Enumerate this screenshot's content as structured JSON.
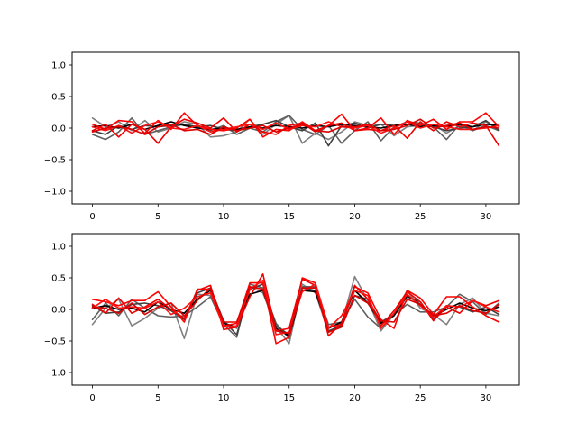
{
  "chart_data": [
    {
      "type": "line",
      "xlim": [
        -1.55,
        32.55
      ],
      "ylim": [
        -1.2,
        1.2
      ],
      "xticks": [
        0,
        5,
        10,
        15,
        20,
        25,
        30
      ],
      "yticks": [
        1.0,
        0.5,
        0.0,
        -0.5,
        -1.0
      ],
      "xtick_labels": [
        "0",
        "5",
        "10",
        "15",
        "20",
        "25",
        "30"
      ],
      "ytick_labels": [
        "1.0",
        "0.5",
        "0.0",
        "−0.5",
        "−1.0"
      ],
      "grid": false,
      "series": [
        {
          "color": "#808080",
          "values": [
            0.16,
            0.02,
            0.1,
            -0.04,
            0.12,
            -0.06,
            0.0,
            0.1,
            0.06,
            -0.14,
            -0.12,
            -0.06,
            0.14,
            -0.1,
            0.06,
            0.2,
            -0.24,
            -0.08,
            -0.18,
            -0.06,
            0.1,
            0.04,
            0.06,
            -0.12,
            0.02,
            0.04,
            0.06,
            -0.08,
            0.04,
            -0.04,
            0.1,
            -0.02
          ]
        },
        {
          "color": "#606060",
          "values": [
            -0.1,
            -0.18,
            -0.06,
            0.16,
            -0.1,
            -0.04,
            0.02,
            0.06,
            0.02,
            -0.04,
            0.04,
            -0.1,
            0.0,
            -0.06,
            0.1,
            0.2,
            -0.02,
            -0.1,
            0.04,
            -0.24,
            -0.04,
            0.1,
            -0.2,
            0.02,
            0.1,
            0.08,
            0.02,
            -0.18,
            0.06,
            -0.04,
            0.04,
            -0.04
          ]
        },
        {
          "color": "#404040",
          "values": [
            -0.04,
            -0.1,
            0.04,
            -0.02,
            0.04,
            0.02,
            0.04,
            0.06,
            0.02,
            0.04,
            -0.02,
            -0.04,
            0.02,
            0.06,
            0.12,
            0.02,
            -0.04,
            0.08,
            -0.28,
            0.04,
            0.08,
            0.0,
            0.06,
            0.04,
            0.06,
            0.04,
            0.02,
            -0.04,
            0.0,
            0.02,
            0.12,
            -0.04
          ]
        },
        {
          "color": "#000000",
          "values": [
            0.02,
            0.04,
            0.0,
            0.06,
            -0.02,
            0.04,
            0.1,
            0.04,
            0.0,
            -0.02,
            0.0,
            -0.02,
            0.02,
            0.0,
            0.04,
            0.02,
            0.0,
            0.04,
            0.02,
            0.06,
            0.04,
            0.02,
            0.0,
            0.04,
            0.06,
            0.02,
            0.04,
            0.02,
            0.06,
            0.02,
            0.06,
            0.04
          ]
        },
        {
          "color": "#ff0000",
          "values": [
            0.06,
            -0.02,
            0.12,
            0.1,
            -0.08,
            0.12,
            -0.02,
            0.24,
            0.04,
            -0.02,
            -0.04,
            0.0,
            0.14,
            -0.14,
            -0.02,
            -0.04,
            0.1,
            -0.04,
            0.04,
            0.22,
            -0.04,
            0.0,
            0.16,
            -0.1,
            0.12,
            0.04,
            0.14,
            -0.02,
            0.1,
            0.1,
            0.24,
            0.02
          ]
        },
        {
          "color": "#ee0000",
          "values": [
            -0.04,
            0.06,
            -0.14,
            0.06,
            -0.02,
            -0.24,
            0.02,
            0.14,
            0.08,
            0.0,
            0.16,
            -0.06,
            0.06,
            -0.06,
            -0.1,
            0.04,
            0.08,
            -0.06,
            0.04,
            0.08,
            -0.04,
            -0.02,
            -0.04,
            0.04,
            -0.16,
            0.1,
            -0.04,
            0.1,
            0.02,
            0.08,
            0.04,
            -0.28
          ]
        },
        {
          "color": "#ff1010",
          "values": [
            0.02,
            -0.04,
            0.04,
            -0.08,
            0.04,
            0.1,
            0.0,
            -0.02,
            0.04,
            -0.06,
            -0.02,
            0.02,
            0.06,
            -0.02,
            0.08,
            -0.02,
            0.04,
            0.02,
            0.1,
            0.02,
            0.0,
            0.04,
            -0.08,
            0.0,
            0.1,
            0.0,
            0.06,
            0.02,
            -0.02,
            -0.02,
            0.0,
            0.04
          ]
        },
        {
          "color": "#dd0000",
          "values": [
            -0.06,
            0.0,
            0.02,
            -0.02,
            -0.1,
            0.02,
            0.06,
            -0.04,
            -0.02,
            -0.1,
            0.02,
            -0.04,
            0.0,
            0.04,
            -0.06,
            0.0,
            0.06,
            -0.04,
            -0.06,
            0.02,
            0.02,
            0.06,
            -0.04,
            -0.02,
            0.04,
            0.14,
            0.0,
            0.04,
            0.08,
            -0.02,
            0.02,
            0.0
          ]
        }
      ]
    },
    {
      "type": "line",
      "xlim": [
        -1.55,
        32.55
      ],
      "ylim": [
        -1.2,
        1.2
      ],
      "xticks": [
        0,
        5,
        10,
        15,
        20,
        25,
        30
      ],
      "yticks": [
        1.0,
        0.5,
        0.0,
        -0.5,
        -1.0
      ],
      "xtick_labels": [
        "0",
        "5",
        "10",
        "15",
        "20",
        "25",
        "30"
      ],
      "ytick_labels": [
        "1.0",
        "0.5",
        "0.0",
        "−0.5",
        "−1.0"
      ],
      "grid": false,
      "series": [
        {
          "color": "#808080",
          "values": [
            -0.24,
            0.02,
            0.16,
            -0.26,
            -0.14,
            0.02,
            0.1,
            -0.46,
            0.24,
            0.22,
            -0.2,
            -0.3,
            0.36,
            0.26,
            -0.28,
            -0.54,
            0.4,
            0.26,
            -0.36,
            -0.22,
            0.52,
            0.14,
            -0.34,
            -0.08,
            0.3,
            0.02,
            -0.08,
            -0.24,
            0.08,
            0.18,
            -0.06,
            -0.1
          ]
        },
        {
          "color": "#606060",
          "values": [
            -0.16,
            0.1,
            -0.1,
            0.16,
            0.02,
            -0.1,
            -0.12,
            -0.1,
            0.04,
            0.2,
            -0.24,
            -0.44,
            0.4,
            0.34,
            -0.22,
            -0.46,
            0.36,
            0.36,
            -0.24,
            -0.2,
            0.16,
            -0.12,
            -0.3,
            -0.08,
            0.08,
            -0.04,
            -0.04,
            0.04,
            0.24,
            0.12,
            -0.08,
            0.1
          ]
        },
        {
          "color": "#404040",
          "values": [
            0.06,
            -0.06,
            -0.04,
            0.08,
            0.1,
            0.06,
            -0.02,
            -0.16,
            0.26,
            0.34,
            -0.18,
            -0.4,
            0.32,
            0.4,
            -0.26,
            -0.4,
            0.34,
            0.3,
            -0.34,
            -0.26,
            0.22,
            0.16,
            -0.2,
            -0.08,
            0.2,
            0.12,
            -0.16,
            0.06,
            0.04,
            -0.04,
            0.04,
            -0.08
          ]
        },
        {
          "color": "#000000",
          "values": [
            0.02,
            0.06,
            0.0,
            0.02,
            -0.04,
            0.12,
            0.0,
            -0.06,
            0.16,
            0.3,
            -0.22,
            -0.28,
            0.24,
            0.3,
            -0.3,
            -0.42,
            0.3,
            0.28,
            -0.3,
            -0.2,
            0.3,
            0.1,
            -0.22,
            -0.1,
            0.22,
            0.08,
            -0.1,
            0.0,
            0.1,
            0.02,
            -0.02,
            0.04
          ]
        },
        {
          "color": "#ff0000",
          "values": [
            0.16,
            0.12,
            0.06,
            0.14,
            0.14,
            0.28,
            0.04,
            -0.2,
            0.32,
            0.32,
            -0.26,
            -0.22,
            0.42,
            0.42,
            -0.54,
            -0.44,
            0.5,
            0.42,
            -0.28,
            -0.24,
            0.36,
            0.26,
            -0.16,
            -0.3,
            0.3,
            0.18,
            -0.08,
            0.2,
            0.2,
            0.04,
            -0.1,
            -0.2
          ]
        },
        {
          "color": "#ee0000",
          "values": [
            0.08,
            -0.06,
            0.18,
            -0.06,
            0.04,
            0.16,
            0.0,
            -0.14,
            0.3,
            0.38,
            -0.32,
            -0.28,
            0.2,
            0.56,
            -0.34,
            -0.3,
            0.48,
            0.38,
            -0.42,
            -0.22,
            0.38,
            0.16,
            -0.26,
            -0.02,
            0.28,
            0.12,
            -0.18,
            0.04,
            -0.06,
            0.14,
            0.06,
            0.14
          ]
        },
        {
          "color": "#ff1010",
          "values": [
            0.02,
            0.16,
            0.02,
            0.04,
            0.02,
            0.12,
            -0.08,
            0.02,
            0.2,
            0.26,
            -0.28,
            -0.26,
            0.32,
            0.46,
            -0.4,
            -0.36,
            0.28,
            0.4,
            -0.3,
            -0.1,
            0.3,
            0.22,
            -0.3,
            -0.06,
            0.24,
            0.06,
            -0.12,
            0.06,
            0.04,
            0.14,
            0.04,
            -0.04
          ]
        },
        {
          "color": "#dd0000",
          "values": [
            0.04,
            0.02,
            -0.06,
            0.1,
            -0.08,
            0.04,
            0.1,
            -0.1,
            0.14,
            0.34,
            -0.2,
            -0.2,
            0.36,
            0.32,
            -0.34,
            -0.38,
            0.34,
            0.34,
            -0.36,
            -0.28,
            0.22,
            0.1,
            -0.18,
            -0.2,
            0.16,
            0.08,
            -0.1,
            -0.06,
            0.06,
            -0.02,
            -0.06,
            0.08
          ]
        }
      ]
    }
  ]
}
